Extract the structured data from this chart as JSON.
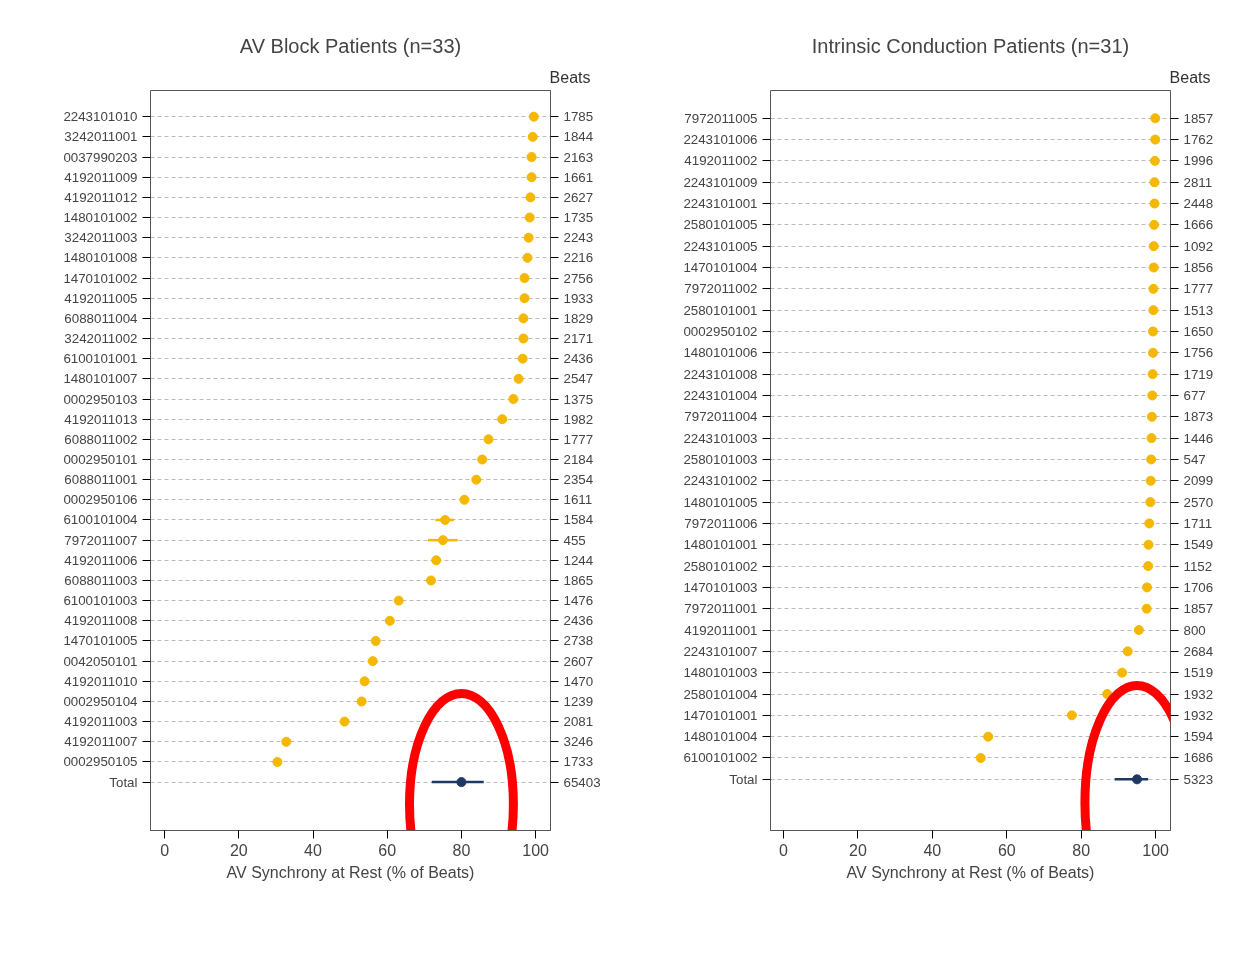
{
  "chart_data": [
    {
      "type": "scatter",
      "orientation": "horizontal",
      "title": "AV Block Patients (n=33)",
      "xlabel": "AV Synchrony at Rest (% of Beats)",
      "y2label": "Beats",
      "xlim": [
        -3.8,
        104
      ],
      "xticks": [
        0,
        20,
        40,
        60,
        80,
        100
      ],
      "grid": "y",
      "marker": "circle",
      "categories": [
        "2243101010",
        "3242011001",
        "0037990203",
        "4192011009",
        "4192011012",
        "1480101002",
        "3242011003",
        "1480101008",
        "1470101002",
        "4192011005",
        "6088011004",
        "3242011002",
        "6100101001",
        "1480101007",
        "0002950103",
        "4192011013",
        "6088011002",
        "0002950101",
        "6088011001",
        "0002950106",
        "6100101004",
        "7972011007",
        "4192011006",
        "6088011003",
        "6100101003",
        "4192011008",
        "1470101005",
        "0042050101",
        "4192011010",
        "0002950104",
        "4192011003",
        "4192011007",
        "0002950105",
        "Total"
      ],
      "y2_categories": [
        "1785",
        "1844",
        "2163",
        "1661",
        "2627",
        "1735",
        "2243",
        "2216",
        "2756",
        "1933",
        "1829",
        "2171",
        "2436",
        "2547",
        "1375",
        "1982",
        "1777",
        "2184",
        "2354",
        "1611",
        "1584",
        "455",
        "1244",
        "1865",
        "1476",
        "2436",
        "2738",
        "2607",
        "1470",
        "1239",
        "2081",
        "3246",
        "1733",
        "65403"
      ],
      "values": [
        99.5,
        99.2,
        98.9,
        98.9,
        98.6,
        98.4,
        98.1,
        97.8,
        97,
        97,
        96.7,
        96.7,
        96.5,
        95.4,
        94,
        91,
        87.3,
        85.6,
        84,
        80.8,
        75.6,
        75,
        73.2,
        71.8,
        63.1,
        60.7,
        56.9,
        56.1,
        53.9,
        53.1,
        48.5,
        32.8,
        30.4,
        80
      ],
      "errors": [
        null,
        null,
        null,
        null,
        null,
        null,
        null,
        null,
        null,
        null,
        null,
        null,
        null,
        null,
        null,
        null,
        null,
        null,
        null,
        null,
        [
          73,
          78
        ],
        [
          71,
          79
        ],
        null,
        null,
        null,
        null,
        null,
        null,
        null,
        null,
        null,
        null,
        null,
        [
          72,
          86
        ]
      ],
      "colors": [
        "#f5b800",
        "#f5b800",
        "#f5b800",
        "#f5b800",
        "#f5b800",
        "#f5b800",
        "#f5b800",
        "#f5b800",
        "#f5b800",
        "#f5b800",
        "#f5b800",
        "#f5b800",
        "#f5b800",
        "#f5b800",
        "#f5b800",
        "#f5b800",
        "#f5b800",
        "#f5b800",
        "#f5b800",
        "#f5b800",
        "#f5b800",
        "#f5b800",
        "#f5b800",
        "#f5b800",
        "#f5b800",
        "#f5b800",
        "#f5b800",
        "#f5b800",
        "#f5b800",
        "#f5b800",
        "#f5b800",
        "#f5b800",
        "#f5b800",
        "#1f3864"
      ]
    },
    {
      "type": "scatter",
      "orientation": "horizontal",
      "title": "Intrinsic Conduction Patients (n=31)",
      "xlabel": "AV Synchrony at Rest (% of Beats)",
      "y2label": "Beats",
      "xlim": [
        -3.5,
        104
      ],
      "xticks": [
        0,
        20,
        40,
        60,
        80,
        100
      ],
      "grid": "y",
      "marker": "circle",
      "categories": [
        "7972011005",
        "2243101006",
        "4192011002",
        "2243101009",
        "2243101001",
        "2580101005",
        "2243101005",
        "1470101004",
        "7972011002",
        "2580101001",
        "0002950102",
        "1480101006",
        "2243101008",
        "2243101004",
        "7972011004",
        "2243101003",
        "2580101003",
        "2243101002",
        "1480101005",
        "7972011006",
        "1480101001",
        "2580101002",
        "1470101003",
        "7972011001",
        "4192011001",
        "2243101007",
        "1480101003",
        "2580101004",
        "1470101001",
        "1480101004",
        "6100101002",
        "Total"
      ],
      "y2_categories": [
        "1857",
        "1762",
        "1996",
        "2811",
        "2448",
        "1666",
        "1092",
        "1856",
        "1777",
        "1513",
        "1650",
        "1756",
        "1719",
        "677",
        "1873",
        "1446",
        "547",
        "2099",
        "2570",
        "1711",
        "1549",
        "1152",
        "1706",
        "1857",
        "800",
        "2684",
        "1519",
        "1932",
        "1932",
        "1594",
        "1686",
        "5323"
      ],
      "values": [
        99.9,
        99.9,
        99.8,
        99.7,
        99.7,
        99.6,
        99.5,
        99.5,
        99.4,
        99.4,
        99.3,
        99.3,
        99.2,
        99.1,
        99,
        98.9,
        98.8,
        98.7,
        98.6,
        98.3,
        98.1,
        98,
        97.7,
        97.6,
        95.5,
        92.5,
        91,
        87,
        77.5,
        55,
        53,
        95
      ],
      "errors": [
        null,
        null,
        null,
        null,
        null,
        null,
        null,
        null,
        null,
        null,
        null,
        null,
        null,
        null,
        null,
        null,
        null,
        null,
        null,
        null,
        null,
        null,
        null,
        null,
        null,
        null,
        null,
        null,
        null,
        null,
        null,
        [
          89,
          98
        ]
      ],
      "colors": [
        "#f5b800",
        "#f5b800",
        "#f5b800",
        "#f5b800",
        "#f5b800",
        "#f5b800",
        "#f5b800",
        "#f5b800",
        "#f5b800",
        "#f5b800",
        "#f5b800",
        "#f5b800",
        "#f5b800",
        "#f5b800",
        "#f5b800",
        "#f5b800",
        "#f5b800",
        "#f5b800",
        "#f5b800",
        "#f5b800",
        "#f5b800",
        "#f5b800",
        "#f5b800",
        "#f5b800",
        "#f5b800",
        "#f5b800",
        "#f5b800",
        "#f5b800",
        "#f5b800",
        "#f5b800",
        "#f5b800",
        "#1f3864"
      ]
    }
  ]
}
